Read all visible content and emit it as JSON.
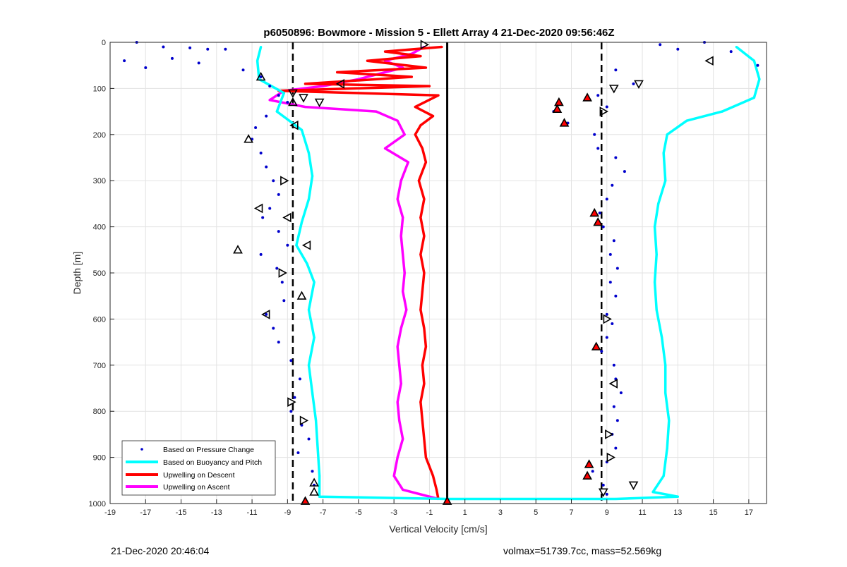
{
  "chart_data": {
    "type": "scatter",
    "title": "p6050896: Bowmore - Mission 5 - Ellett Array 4 21-Dec-2020 09:56:46Z",
    "xlabel": "Vertical Velocity [cm/s]",
    "ylabel": "Depth [m]",
    "xlim": [
      -19,
      18
    ],
    "ylim": [
      0,
      1000
    ],
    "y_reversed": true,
    "xticks": [
      -19,
      -17,
      -15,
      -13,
      -11,
      -9,
      -7,
      -5,
      -3,
      -1,
      1,
      3,
      5,
      7,
      9,
      11,
      13,
      15,
      17
    ],
    "yticks": [
      0,
      100,
      200,
      300,
      400,
      500,
      600,
      700,
      800,
      900,
      1000
    ],
    "grid": true,
    "legend_position": "bottom-left",
    "colors": {
      "pressure": "#0000cc",
      "buoyancy": "#00ffff",
      "descent": "#ff0000",
      "ascent": "#ff00ff",
      "reference": "#000000"
    },
    "reference_lines": [
      {
        "x": -8.7,
        "style": "dashed"
      },
      {
        "x": 8.7,
        "style": "dashed"
      },
      {
        "x": 0,
        "style": "solid"
      }
    ],
    "series": [
      {
        "name": "Based on Pressure Change",
        "marker": "point",
        "points": [
          [
            -17.5,
            0
          ],
          [
            -16,
            10
          ],
          [
            -14.5,
            12
          ],
          [
            -13.5,
            15
          ],
          [
            -18.2,
            40
          ],
          [
            -17,
            55
          ],
          [
            -15.5,
            35
          ],
          [
            -14,
            45
          ],
          [
            -12.5,
            15
          ],
          [
            -11.5,
            60
          ],
          [
            -10.5,
            75
          ],
          [
            -10,
            95
          ],
          [
            -9.5,
            115
          ],
          [
            -9,
            130
          ],
          [
            -10.2,
            160
          ],
          [
            -10.8,
            185
          ],
          [
            -11,
            210
          ],
          [
            -10.5,
            240
          ],
          [
            -10.2,
            270
          ],
          [
            -9.8,
            300
          ],
          [
            -9.5,
            330
          ],
          [
            -10,
            360
          ],
          [
            -10.4,
            380
          ],
          [
            -9.5,
            410
          ],
          [
            -9,
            440
          ],
          [
            -10.5,
            460
          ],
          [
            -9.6,
            490
          ],
          [
            -9.3,
            520
          ],
          [
            -9.2,
            560
          ],
          [
            -10.2,
            590
          ],
          [
            -9.8,
            620
          ],
          [
            -9.5,
            650
          ],
          [
            -8.8,
            690
          ],
          [
            -8.3,
            730
          ],
          [
            -8.6,
            770
          ],
          [
            -8.8,
            800
          ],
          [
            -8.2,
            830
          ],
          [
            -7.8,
            860
          ],
          [
            -8.4,
            890
          ],
          [
            -7.6,
            930
          ],
          [
            -7.5,
            960
          ],
          [
            -8,
            990
          ],
          [
            9.5,
            60
          ],
          [
            10.5,
            90
          ],
          [
            8.5,
            115
          ],
          [
            9,
            140
          ],
          [
            6,
            150
          ],
          [
            6.8,
            175
          ],
          [
            8.3,
            200
          ],
          [
            8.5,
            230
          ],
          [
            9.5,
            250
          ],
          [
            10,
            280
          ],
          [
            9.3,
            310
          ],
          [
            9,
            340
          ],
          [
            8.6,
            370
          ],
          [
            8.8,
            400
          ],
          [
            9.4,
            430
          ],
          [
            9.2,
            460
          ],
          [
            9.6,
            490
          ],
          [
            9.2,
            520
          ],
          [
            9.5,
            550
          ],
          [
            9,
            590
          ],
          [
            9.3,
            610
          ],
          [
            9,
            640
          ],
          [
            8.7,
            670
          ],
          [
            9.4,
            700
          ],
          [
            9.5,
            730
          ],
          [
            9.8,
            760
          ],
          [
            9.4,
            790
          ],
          [
            9.6,
            820
          ],
          [
            9.3,
            850
          ],
          [
            9.5,
            880
          ],
          [
            9,
            910
          ],
          [
            8.2,
            930
          ],
          [
            8.8,
            960
          ],
          [
            9,
            980
          ],
          [
            14.5,
            0
          ],
          [
            16,
            20
          ],
          [
            17.5,
            50
          ],
          [
            13,
            15
          ],
          [
            12,
            5
          ]
        ]
      },
      {
        "name": "Based on Buoyancy and Pitch",
        "points": [
          [
            -10.5,
            10
          ],
          [
            -10.7,
            40
          ],
          [
            -10.6,
            80
          ],
          [
            -9.2,
            110
          ],
          [
            -9.6,
            150
          ],
          [
            -8.2,
            190
          ],
          [
            -7.8,
            240
          ],
          [
            -7.6,
            290
          ],
          [
            -7.8,
            340
          ],
          [
            -8.2,
            390
          ],
          [
            -8.5,
            440
          ],
          [
            -7.9,
            480
          ],
          [
            -7.5,
            520
          ],
          [
            -7.8,
            580
          ],
          [
            -7.5,
            640
          ],
          [
            -7.8,
            700
          ],
          [
            -7.6,
            760
          ],
          [
            -7.4,
            820
          ],
          [
            -7.3,
            880
          ],
          [
            -7.2,
            940
          ],
          [
            -7.2,
            985
          ],
          [
            0,
            990
          ],
          [
            9.5,
            990
          ],
          [
            13,
            985
          ],
          [
            11.6,
            975
          ],
          [
            12.2,
            940
          ],
          [
            12.4,
            880
          ],
          [
            12.5,
            820
          ],
          [
            12.3,
            760
          ],
          [
            12.3,
            700
          ],
          [
            12.1,
            640
          ],
          [
            11.8,
            580
          ],
          [
            11.7,
            520
          ],
          [
            11.8,
            460
          ],
          [
            11.7,
            400
          ],
          [
            11.9,
            350
          ],
          [
            12.3,
            300
          ],
          [
            12.2,
            240
          ],
          [
            12.4,
            200
          ],
          [
            13.5,
            170
          ],
          [
            15.5,
            150
          ],
          [
            17.3,
            120
          ],
          [
            17.6,
            80
          ],
          [
            17.3,
            40
          ],
          [
            16.3,
            10
          ]
        ]
      },
      {
        "name": "Upwelling on Descent",
        "points": [
          [
            -0.3,
            10
          ],
          [
            -3.5,
            20
          ],
          [
            -1.5,
            30
          ],
          [
            -4.5,
            40
          ],
          [
            -1.2,
            55
          ],
          [
            -6.2,
            65
          ],
          [
            -2,
            75
          ],
          [
            -8,
            90
          ],
          [
            -1,
            95
          ],
          [
            -9.5,
            105
          ],
          [
            -0.5,
            115
          ],
          [
            -1.8,
            140
          ],
          [
            -0.8,
            160
          ],
          [
            -1.5,
            180
          ],
          [
            -1.8,
            200
          ],
          [
            -1.4,
            230
          ],
          [
            -1.2,
            260
          ],
          [
            -1.6,
            300
          ],
          [
            -1.3,
            340
          ],
          [
            -1.5,
            380
          ],
          [
            -1.3,
            420
          ],
          [
            -1.5,
            460
          ],
          [
            -1.3,
            500
          ],
          [
            -1.4,
            540
          ],
          [
            -1.5,
            580
          ],
          [
            -1.3,
            620
          ],
          [
            -1.2,
            660
          ],
          [
            -1.4,
            700
          ],
          [
            -1.3,
            740
          ],
          [
            -1.5,
            780
          ],
          [
            -1.4,
            820
          ],
          [
            -1.3,
            860
          ],
          [
            -1.2,
            900
          ],
          [
            -0.8,
            940
          ],
          [
            -0.6,
            970
          ],
          [
            -0.5,
            990
          ]
        ]
      },
      {
        "name": "Upwelling on Ascent",
        "points": [
          [
            -0.5,
            990
          ],
          [
            -2.5,
            970
          ],
          [
            -3,
            940
          ],
          [
            -2.8,
            900
          ],
          [
            -2.5,
            860
          ],
          [
            -2.7,
            820
          ],
          [
            -2.8,
            780
          ],
          [
            -2.6,
            740
          ],
          [
            -2.7,
            700
          ],
          [
            -2.8,
            660
          ],
          [
            -2.6,
            620
          ],
          [
            -2.3,
            580
          ],
          [
            -2.5,
            540
          ],
          [
            -2.4,
            500
          ],
          [
            -2.5,
            460
          ],
          [
            -2.6,
            420
          ],
          [
            -2.5,
            380
          ],
          [
            -2.8,
            340
          ],
          [
            -2.6,
            300
          ],
          [
            -2.2,
            260
          ],
          [
            -3.5,
            230
          ],
          [
            -2.4,
            200
          ],
          [
            -2.8,
            170
          ],
          [
            -4,
            150
          ],
          [
            -8,
            140
          ],
          [
            -10,
            125
          ],
          [
            -9.2,
            105
          ],
          [
            -7,
            95
          ],
          [
            -5,
            80
          ],
          [
            -2.5,
            55
          ],
          [
            -3.5,
            40
          ],
          [
            -2,
            25
          ],
          [
            -1.3,
            10
          ]
        ]
      }
    ],
    "triangle_markers": {
      "up_hollow": [
        [
          -10.5,
          75
        ],
        [
          -11.2,
          210
        ],
        [
          -8.7,
          130
        ],
        [
          -8.2,
          550
        ],
        [
          -11.8,
          450
        ],
        [
          -7.5,
          975
        ],
        [
          -7.5,
          955
        ]
      ],
      "down_hollow": [
        [
          -8.7,
          110
        ],
        [
          -7.2,
          130
        ],
        [
          -8.1,
          120
        ],
        [
          9.4,
          100
        ],
        [
          10.8,
          90
        ],
        [
          10.5,
          960
        ],
        [
          8.8,
          975
        ]
      ],
      "left_hollow": [
        [
          14.8,
          40
        ],
        [
          -6,
          90
        ],
        [
          -8.6,
          180
        ],
        [
          -10.6,
          360
        ],
        [
          -9,
          380
        ],
        [
          -7.9,
          440
        ],
        [
          -10.2,
          590
        ],
        [
          9.4,
          740
        ]
      ],
      "right_hollow": [
        [
          -1.3,
          5
        ],
        [
          -9.2,
          300
        ],
        [
          -9.3,
          500
        ],
        [
          -8.8,
          780
        ],
        [
          -8.1,
          820
        ],
        [
          9,
          600
        ],
        [
          9.1,
          850
        ],
        [
          9.2,
          900
        ],
        [
          8.8,
          150
        ]
      ],
      "up_red": [
        [
          6.3,
          130
        ],
        [
          6.2,
          145
        ],
        [
          6.6,
          175
        ],
        [
          7.9,
          120
        ],
        [
          8.3,
          370
        ],
        [
          8.5,
          390
        ],
        [
          8.4,
          660
        ],
        [
          8,
          915
        ],
        [
          7.9,
          940
        ],
        [
          -8,
          995
        ],
        [
          0,
          995
        ]
      ]
    }
  },
  "footer": {
    "timestamp": "21-Dec-2020 20:46:04",
    "summary": "volmax=51739.7cc, mass=52.569kg"
  }
}
